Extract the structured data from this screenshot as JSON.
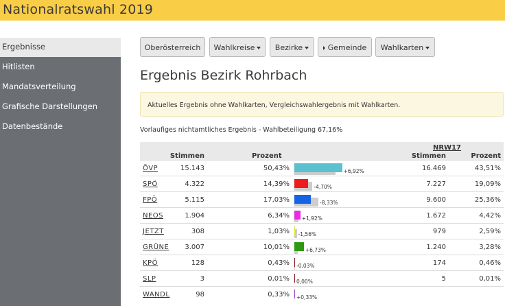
{
  "header": {
    "title": "Nationalratswahl 2019",
    "color": "#f9cd46"
  },
  "sidebar": {
    "items": [
      {
        "label": "Ergebnisse",
        "active": true
      },
      {
        "label": "Hitlisten"
      },
      {
        "label": "Mandatsverteilung"
      },
      {
        "label": "Grafische Darstellungen"
      },
      {
        "label": "Datenbestände"
      }
    ]
  },
  "toolbar": {
    "buttons": [
      {
        "label": "Oberösterreich"
      },
      {
        "label": "Wahlkreise",
        "icon": "caret-down-icon"
      },
      {
        "label": "Bezirke",
        "icon": "caret-down-icon"
      },
      {
        "label": "Gemeinde",
        "icon": "caret-right-icon"
      },
      {
        "label": "Wahlkarten",
        "icon": "caret-down-icon"
      }
    ]
  },
  "page": {
    "title": "Ergebnis Bezirk Rohrbach",
    "alert": "Aktuelles Ergebnis ohne Wahlkarten, Vergleichswahlergebnis mit Wahlkarten.",
    "subtitle": "Vorlaufiges nichtamtliches Ergebnis - Wahlbeteiligung 67,16%"
  },
  "table": {
    "headers": {
      "stimmen": "Stimmen",
      "prozent": "Prozent",
      "prev_group": "NRW17",
      "prev_stimmen": "Stimmen",
      "prev_prozent": "Prozent"
    },
    "rows": [
      {
        "party": "ÖVP",
        "stimmen": "15.143",
        "prozent": "50,43%",
        "pct": 50.43,
        "diff": "+6,92%",
        "prev_stimmen": "16.469",
        "prev_prozent": "43,51%",
        "prev_pct": 43.51,
        "color": "#5bc0cf"
      },
      {
        "party": "SPÖ",
        "stimmen": "4.322",
        "prozent": "14,39%",
        "pct": 14.39,
        "diff": "-4,70%",
        "prev_stimmen": "7.227",
        "prev_prozent": "19,09%",
        "prev_pct": 19.09,
        "color": "#ee1c1c"
      },
      {
        "party": "FPÖ",
        "stimmen": "5.115",
        "prozent": "17,03%",
        "pct": 17.03,
        "diff": "-8,33%",
        "prev_stimmen": "9.600",
        "prev_prozent": "25,36%",
        "prev_pct": 25.36,
        "color": "#1563e6"
      },
      {
        "party": "NEOS",
        "stimmen": "1.904",
        "prozent": "6,34%",
        "pct": 6.34,
        "diff": "+1,92%",
        "prev_stimmen": "1.672",
        "prev_prozent": "4,42%",
        "prev_pct": 4.42,
        "color": "#ea2be0"
      },
      {
        "party": "JETZT",
        "stimmen": "308",
        "prozent": "1,03%",
        "pct": 1.03,
        "diff": "-1,56%",
        "prev_stimmen": "979",
        "prev_prozent": "2,59%",
        "prev_pct": 2.59,
        "color": "#f3e633"
      },
      {
        "party": "GRÜNE",
        "stimmen": "3.007",
        "prozent": "10,01%",
        "pct": 10.01,
        "diff": "+6,73%",
        "prev_stimmen": "1.240",
        "prev_prozent": "3,28%",
        "prev_pct": 3.28,
        "color": "#2e9a12"
      },
      {
        "party": "KPÖ",
        "stimmen": "128",
        "prozent": "0,43%",
        "pct": 0.43,
        "diff": "-0,03%",
        "prev_stimmen": "174",
        "prev_prozent": "0,46%",
        "prev_pct": 0.46,
        "color": "#8b1a1a"
      },
      {
        "party": "SLP",
        "stimmen": "3",
        "prozent": "0,01%",
        "pct": 0.01,
        "diff": "0,00%",
        "prev_stimmen": "5",
        "prev_prozent": "0,01%",
        "prev_pct": 0.01,
        "color": "#8b1a1a"
      },
      {
        "party": "WANDL",
        "stimmen": "98",
        "prozent": "0,33%",
        "pct": 0.33,
        "diff": "+0,33%",
        "prev_stimmen": "",
        "prev_prozent": "",
        "prev_pct": 0,
        "color": "#a040c8"
      }
    ]
  }
}
